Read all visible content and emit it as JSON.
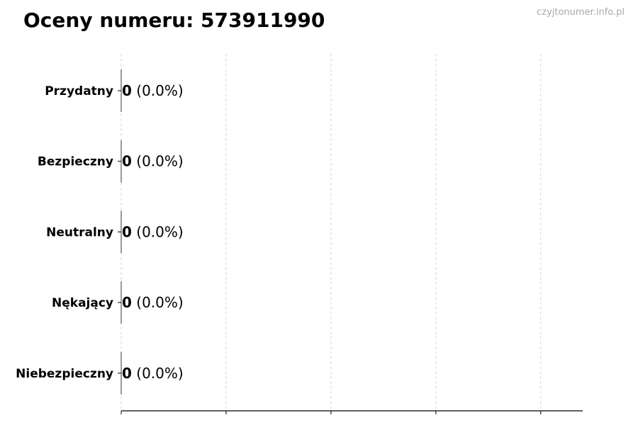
{
  "title": "Oceny numeru: 573911990",
  "watermark": "czyjtonumer.info.pl",
  "chart_data": {
    "type": "bar",
    "orientation": "horizontal",
    "title": "Oceny numeru: 573911990",
    "xlabel": "",
    "ylabel": "",
    "categories": [
      "Przydatny",
      "Bezpieczny",
      "Neutralny",
      "Nękający",
      "Niebezpieczny"
    ],
    "values": [
      0,
      0,
      0,
      0,
      0
    ],
    "data_labels": [
      {
        "count": "0",
        "percent": "(0.0%)"
      },
      {
        "count": "0",
        "percent": "(0.0%)"
      },
      {
        "count": "0",
        "percent": "(0.0%)"
      },
      {
        "count": "0",
        "percent": "(0.0%)"
      },
      {
        "count": "0",
        "percent": "(0.0%)"
      }
    ],
    "xlim": [
      0,
      4.4
    ],
    "xticks": [
      0,
      1,
      2,
      3,
      4
    ],
    "xtick_labels_shown": false,
    "grid": "x, dashed",
    "legend": "none",
    "colors": {
      "bar_edge": "#333333",
      "grid": "#cccccc",
      "axis": "#000000"
    }
  }
}
